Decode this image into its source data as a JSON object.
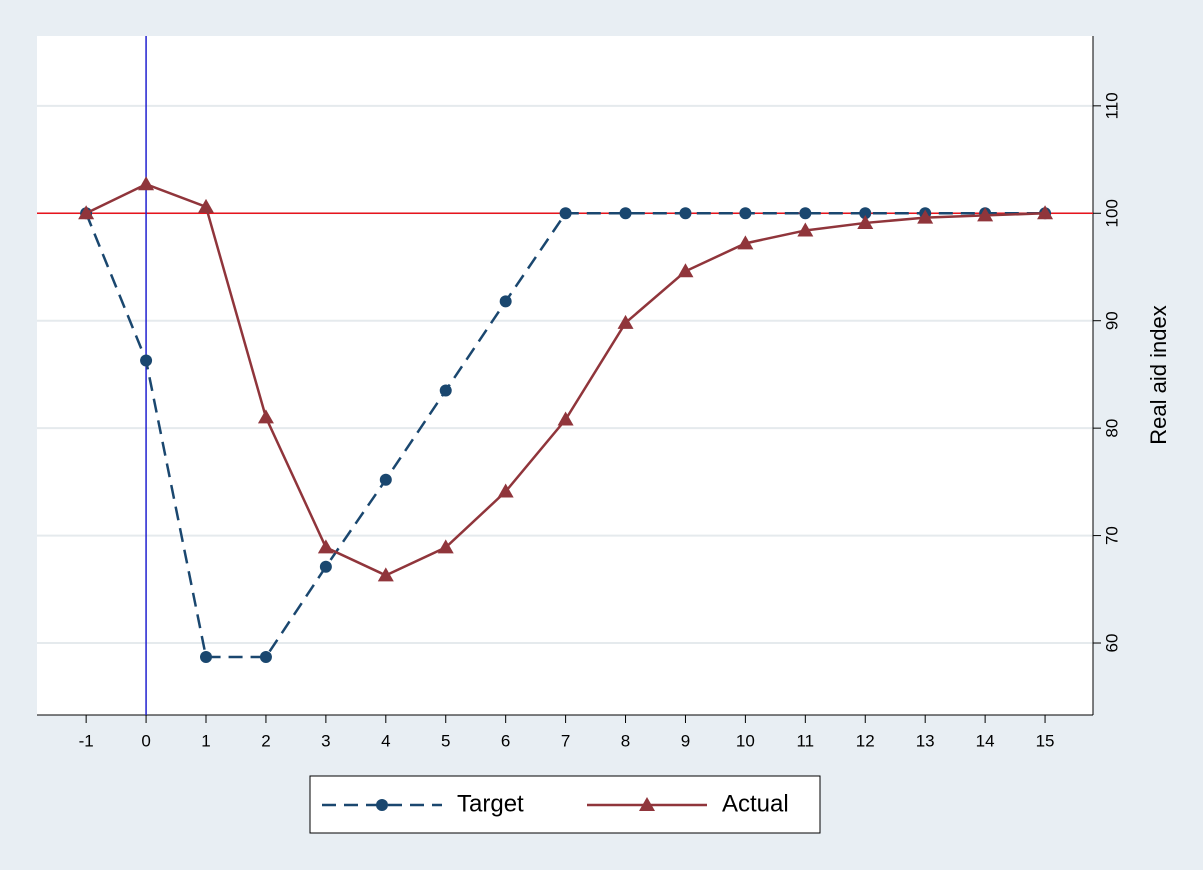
{
  "chart_data": {
    "type": "line",
    "x": [
      -1,
      0,
      1,
      2,
      3,
      4,
      5,
      6,
      7,
      8,
      9,
      10,
      11,
      12,
      13,
      14,
      15
    ],
    "series": [
      {
        "name": "Target",
        "color": "#1a476f",
        "dash": true,
        "marker": "circle",
        "values": [
          100,
          86.3,
          58.7,
          58.7,
          67.1,
          75.2,
          83.5,
          91.8,
          100,
          100,
          100,
          100,
          100,
          100,
          100,
          100,
          100
        ]
      },
      {
        "name": "Actual",
        "color": "#90353b",
        "dash": false,
        "marker": "triangle",
        "values": [
          100,
          102.7,
          100.6,
          81,
          68.9,
          66.3,
          68.9,
          74.1,
          80.8,
          89.8,
          94.6,
          97.2,
          98.4,
          99.1,
          99.6,
          99.8,
          100
        ]
      }
    ],
    "ylabel": "Real aid index",
    "xlim": [
      -1.82,
      15.8
    ],
    "ylim": [
      53.3,
      116.5
    ],
    "xticks": [
      -1,
      0,
      1,
      2,
      3,
      4,
      5,
      6,
      7,
      8,
      9,
      10,
      11,
      12,
      13,
      14,
      15
    ],
    "yticks": [
      60,
      70,
      80,
      90,
      100,
      110
    ],
    "grid": true,
    "hline": {
      "value": 100,
      "color": "#e8141c"
    },
    "vline": {
      "value": 0,
      "color": "#2020d0"
    },
    "legend": "bottom"
  }
}
